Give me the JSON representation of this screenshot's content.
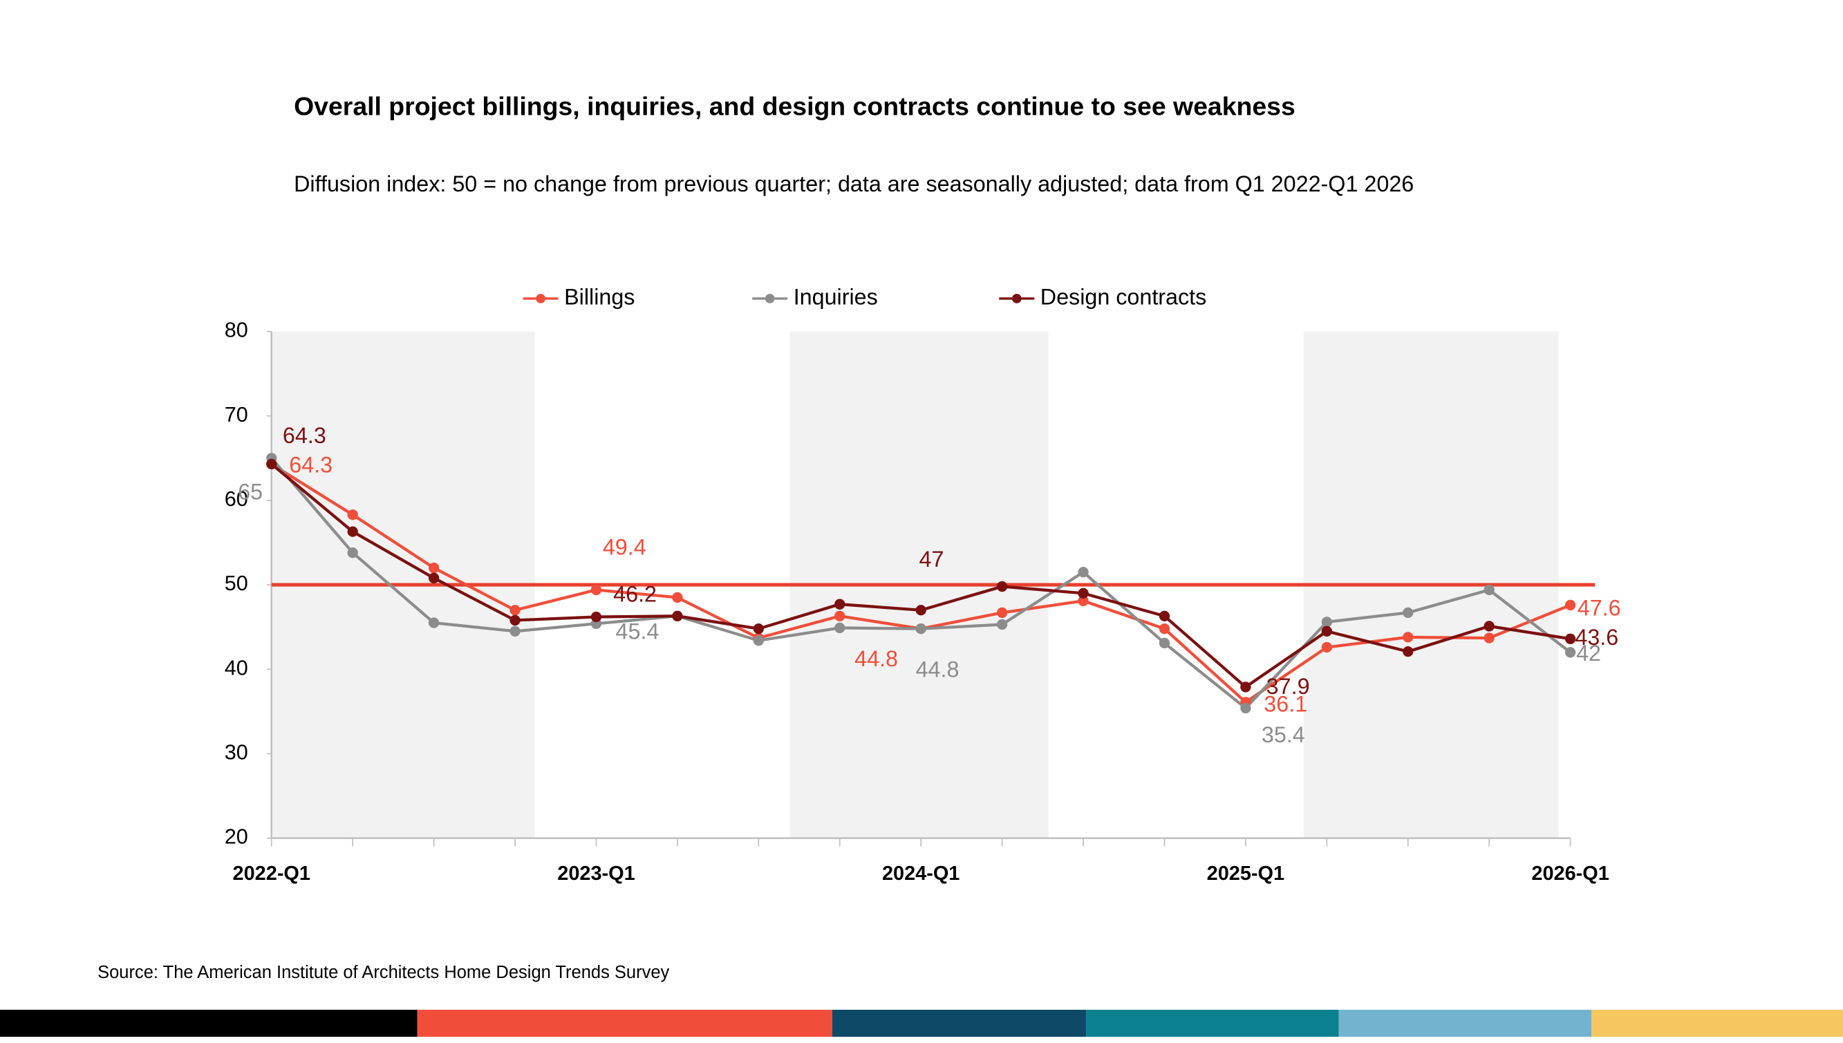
{
  "chart_data": {
    "type": "line",
    "title": "Overall project billings, inquiries, and design contracts continue to see weakness",
    "subtitle": "Diffusion index: 50 = no change from previous quarter; data are seasonally adjusted; data from Q1 2022-Q1 2026",
    "source": "Source: The American Institute of Architects Home Design Trends Survey",
    "categories": [
      "2022-Q1",
      null,
      null,
      null,
      "2023-Q1",
      null,
      null,
      null,
      "2024-Q1",
      null,
      null,
      null,
      "2025-Q1",
      null,
      null,
      null,
      "2026-Q1"
    ],
    "series": [
      {
        "name": "Billings",
        "color": "#f04e3a",
        "values": [
          64.3,
          58.3,
          52.0,
          47.0,
          49.4,
          48.5,
          43.7,
          46.3,
          44.8,
          46.7,
          48.1,
          44.8,
          36.1,
          42.6,
          43.8,
          43.7,
          47.6
        ]
      },
      {
        "name": "Inquiries",
        "color": "#8c8c8c",
        "values": [
          65.0,
          53.8,
          45.5,
          44.5,
          45.4,
          46.3,
          43.4,
          44.9,
          44.8,
          45.3,
          51.5,
          43.1,
          35.4,
          45.6,
          46.7,
          49.4,
          42.0
        ]
      },
      {
        "name": "Design contracts",
        "color": "#7b1010",
        "values": [
          64.3,
          56.3,
          50.8,
          45.8,
          46.2,
          46.3,
          44.8,
          47.7,
          47.0,
          49.8,
          49.0,
          46.3,
          37.9,
          44.5,
          42.1,
          45.1,
          43.6
        ]
      }
    ],
    "ylim": [
      20,
      80
    ],
    "yticks": [
      20,
      30,
      40,
      50,
      60,
      70,
      80
    ],
    "reference_line": 50,
    "reference_color": "#e8402f",
    "legend": "top"
  }
}
